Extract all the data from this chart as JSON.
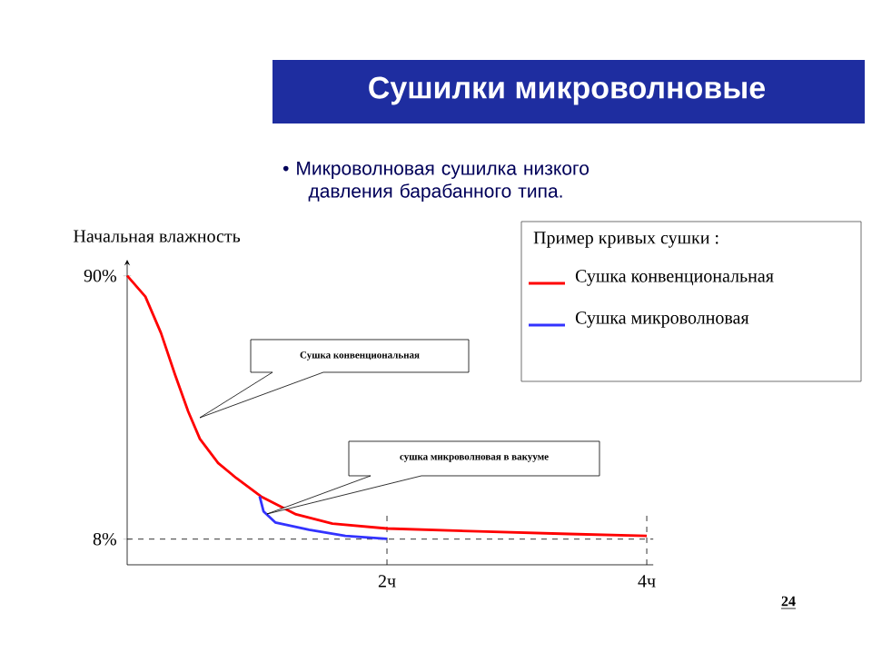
{
  "chart_data": {
    "type": "line",
    "title": "Сушилки микроволновые",
    "subtitle": "• Микроволновая сушилка низкого давления барабанного типа.",
    "ylabel": "Начальная влажность",
    "legend_title": "Пример  кривых сушки :",
    "xlim": [
      0,
      4.05
    ],
    "ylim": [
      0,
      95
    ],
    "xticks": [
      {
        "value": 2,
        "label": "2ч"
      },
      {
        "value": 4,
        "label": "4ч"
      }
    ],
    "yticks": [
      {
        "value": 8,
        "label": "8%"
      },
      {
        "value": 90,
        "label": "90%"
      }
    ],
    "series": [
      {
        "name": "Сушка конвенциональная",
        "color": "#ff0000",
        "x": [
          0,
          0.14,
          0.26,
          0.37,
          0.47,
          0.56,
          0.7,
          0.84,
          1.03,
          1.3,
          1.58,
          2.0,
          2.7,
          3.4,
          4.0
        ],
        "values": [
          90,
          83.5,
          72.2,
          59,
          47.7,
          39.2,
          31.7,
          27,
          21.3,
          15.7,
          12.8,
          11.3,
          10.4,
          9.6,
          9.0
        ]
      },
      {
        "name": "Сушка микроволновая",
        "color": "#3333ff",
        "x": [
          1.02,
          1.05,
          1.14,
          1.4,
          1.68,
          2.0
        ],
        "values": [
          21.3,
          16.6,
          13.2,
          10.9,
          9.0,
          8.1
        ]
      }
    ],
    "ref_lines": [
      {
        "axis": "y",
        "value": 8,
        "line_style": "dashed"
      },
      {
        "axis": "x",
        "value": 2,
        "line_style": "dashed"
      },
      {
        "axis": "x",
        "value": 4,
        "line_style": "dashed"
      }
    ],
    "annotations": [
      "Сушка конвенциональная",
      "сушка микроволновая  в вакууме",
      "24"
    ],
    "legend": "top right",
    "line_style": "solid",
    "marker": "none",
    "grid": false
  }
}
